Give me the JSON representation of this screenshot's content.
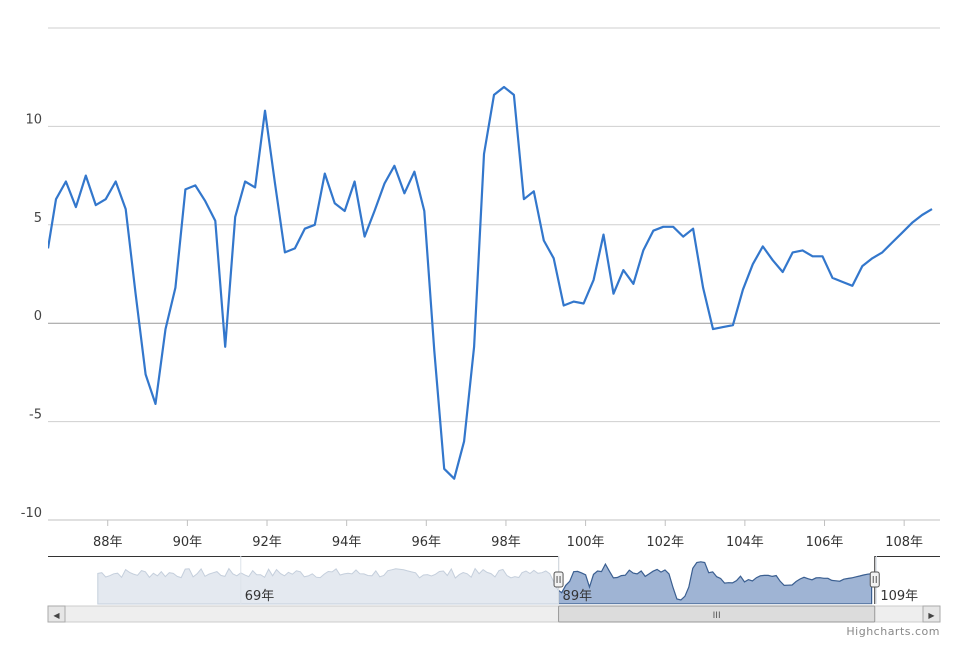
{
  "chart_data": {
    "type": "line",
    "title": "",
    "xlabel": "",
    "ylabel": "",
    "ylim": [
      -10,
      15
    ],
    "y_ticks": [
      -10,
      -5,
      0,
      5,
      10
    ],
    "x_ticks": [
      "88年",
      "90年",
      "92年",
      "94年",
      "96年",
      "98年",
      "100年",
      "102年",
      "104年",
      "106年",
      "108年"
    ],
    "x_tick_values": [
      88,
      90,
      92,
      94,
      96,
      98,
      100,
      102,
      104,
      106,
      108
    ],
    "xlim": [
      86.5,
      108.9
    ],
    "grid": true,
    "legend": "none",
    "line_color": "#3377cc",
    "series": [
      {
        "values": [
          {
            "x": 86.5,
            "y": 3.8
          },
          {
            "x": 86.7,
            "y": 6.3
          },
          {
            "x": 86.95,
            "y": 7.2
          },
          {
            "x": 87.2,
            "y": 5.9
          },
          {
            "x": 87.45,
            "y": 7.5
          },
          {
            "x": 87.7,
            "y": 6.0
          },
          {
            "x": 87.95,
            "y": 6.3
          },
          {
            "x": 88.2,
            "y": 7.2
          },
          {
            "x": 88.45,
            "y": 5.8
          },
          {
            "x": 88.7,
            "y": 1.5
          },
          {
            "x": 88.95,
            "y": -2.6
          },
          {
            "x": 89.2,
            "y": -4.1
          },
          {
            "x": 89.45,
            "y": -0.3
          },
          {
            "x": 89.7,
            "y": 1.8
          },
          {
            "x": 89.95,
            "y": 6.8
          },
          {
            "x": 90.2,
            "y": 7.0
          },
          {
            "x": 90.45,
            "y": 6.2
          },
          {
            "x": 90.7,
            "y": 5.2
          },
          {
            "x": 90.95,
            "y": -1.2
          },
          {
            "x": 91.2,
            "y": 5.4
          },
          {
            "x": 91.45,
            "y": 7.2
          },
          {
            "x": 91.7,
            "y": 6.9
          },
          {
            "x": 91.95,
            "y": 10.8
          },
          {
            "x": 92.2,
            "y": 7.1
          },
          {
            "x": 92.45,
            "y": 3.6
          },
          {
            "x": 92.7,
            "y": 3.8
          },
          {
            "x": 92.95,
            "y": 4.8
          },
          {
            "x": 93.2,
            "y": 5.0
          },
          {
            "x": 93.45,
            "y": 7.6
          },
          {
            "x": 93.7,
            "y": 6.1
          },
          {
            "x": 93.95,
            "y": 5.7
          },
          {
            "x": 94.2,
            "y": 7.2
          },
          {
            "x": 94.45,
            "y": 4.4
          },
          {
            "x": 94.7,
            "y": 5.7
          },
          {
            "x": 94.95,
            "y": 7.1
          },
          {
            "x": 95.2,
            "y": 8.0
          },
          {
            "x": 95.45,
            "y": 6.6
          },
          {
            "x": 95.7,
            "y": 7.7
          },
          {
            "x": 95.95,
            "y": 5.7
          },
          {
            "x": 96.2,
            "y": -1.4
          },
          {
            "x": 96.45,
            "y": -7.4
          },
          {
            "x": 96.7,
            "y": -7.9
          },
          {
            "x": 96.95,
            "y": -6.0
          },
          {
            "x": 97.2,
            "y": -1.2
          },
          {
            "x": 97.45,
            "y": 8.6
          },
          {
            "x": 97.7,
            "y": 11.6
          },
          {
            "x": 97.95,
            "y": 12.0
          },
          {
            "x": 98.2,
            "y": 11.6
          },
          {
            "x": 98.45,
            "y": 6.3
          },
          {
            "x": 98.7,
            "y": 6.7
          },
          {
            "x": 98.95,
            "y": 4.2
          },
          {
            "x": 99.2,
            "y": 3.3
          },
          {
            "x": 99.45,
            "y": 0.9
          },
          {
            "x": 99.7,
            "y": 1.1
          },
          {
            "x": 99.95,
            "y": 1.0
          },
          {
            "x": 100.2,
            "y": 2.2
          },
          {
            "x": 100.45,
            "y": 4.5
          },
          {
            "x": 100.7,
            "y": 1.5
          },
          {
            "x": 100.95,
            "y": 2.7
          },
          {
            "x": 101.2,
            "y": 2.0
          },
          {
            "x": 101.45,
            "y": 3.7
          },
          {
            "x": 101.7,
            "y": 4.7
          },
          {
            "x": 101.95,
            "y": 4.9
          },
          {
            "x": 102.2,
            "y": 4.9
          },
          {
            "x": 102.45,
            "y": 4.4
          },
          {
            "x": 102.7,
            "y": 4.8
          },
          {
            "x": 102.95,
            "y": 1.8
          },
          {
            "x": 103.2,
            "y": -0.3
          },
          {
            "x": 103.45,
            "y": -0.2
          },
          {
            "x": 103.7,
            "y": -0.1
          },
          {
            "x": 103.95,
            "y": 1.7
          },
          {
            "x": 104.2,
            "y": 3.0
          },
          {
            "x": 104.45,
            "y": 3.9
          },
          {
            "x": 104.7,
            "y": 3.2
          },
          {
            "x": 104.95,
            "y": 2.6
          },
          {
            "x": 105.2,
            "y": 3.6
          },
          {
            "x": 105.45,
            "y": 3.7
          },
          {
            "x": 105.7,
            "y": 3.4
          },
          {
            "x": 105.95,
            "y": 3.4
          },
          {
            "x": 106.2,
            "y": 2.3
          },
          {
            "x": 106.45,
            "y": 2.1
          },
          {
            "x": 106.7,
            "y": 1.9
          },
          {
            "x": 106.95,
            "y": 2.9
          },
          {
            "x": 107.2,
            "y": 3.3
          },
          {
            "x": 107.45,
            "y": 3.6
          },
          {
            "x": 107.7,
            "y": 4.1
          },
          {
            "x": 107.95,
            "y": 4.6
          },
          {
            "x": 108.2,
            "y": 5.1
          },
          {
            "x": 108.45,
            "y": 5.5
          },
          {
            "x": 108.7,
            "y": 5.8
          }
        ]
      }
    ]
  },
  "navigator": {
    "labels": [
      "69年",
      "89年",
      "109年"
    ],
    "label_values": [
      69,
      89,
      109
    ],
    "range": [
      58,
      112
    ],
    "selected_range": [
      89,
      108.9
    ]
  },
  "credits": {
    "text": "Highcharts.com"
  },
  "scrollbar": {
    "thumb_glyph": "III",
    "left_arrow": "◀",
    "right_arrow": "▶"
  }
}
